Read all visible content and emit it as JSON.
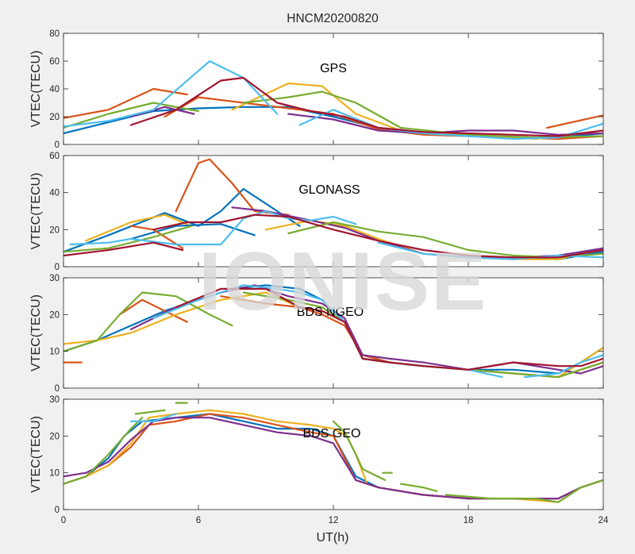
{
  "figure": {
    "title": "HNCM20200820",
    "xlabel": "UT(h)",
    "watermark": "IONISE"
  },
  "palette": [
    "#0072BD",
    "#D95319",
    "#EDB120",
    "#7E2F8E",
    "#77AC30",
    "#4DBEEE",
    "#A2142F"
  ],
  "chart_data": [
    {
      "type": "line",
      "panel_label": "GPS",
      "ylabel": "VTEC(TECU)",
      "xlim": [
        0,
        24
      ],
      "ylim": [
        0,
        80
      ],
      "yticks": [
        0,
        20,
        40,
        60,
        80
      ],
      "xticks": [
        0,
        6,
        12,
        18,
        24
      ],
      "show_xticklabels": false,
      "grid": false,
      "series": [
        {
          "color": 0,
          "x": [
            0,
            2,
            4,
            6,
            8,
            10,
            12,
            14,
            16,
            18,
            20,
            22,
            24
          ],
          "y": [
            8,
            16,
            24,
            26,
            27,
            27,
            20,
            12,
            8,
            6,
            5,
            5,
            8
          ]
        },
        {
          "color": 1,
          "x": [
            0,
            2,
            4,
            5.5
          ],
          "y": [
            19,
            25,
            40,
            36
          ]
        },
        {
          "color": 1,
          "x": [
            4.5,
            6,
            8,
            10,
            12,
            14,
            16,
            18,
            20,
            22,
            24
          ],
          "y": [
            20,
            34,
            30,
            26,
            22,
            11,
            7,
            6,
            5,
            4,
            6
          ]
        },
        {
          "color": 1,
          "x": [
            21.5,
            24
          ],
          "y": [
            12,
            21
          ]
        },
        {
          "color": 2,
          "x": [
            7.5,
            10,
            11.5,
            13,
            15,
            18,
            21,
            24
          ],
          "y": [
            25,
            44,
            42,
            22,
            10,
            7,
            4,
            10
          ]
        },
        {
          "color": 3,
          "x": [
            3,
            4.5,
            5.8
          ],
          "y": [
            20,
            27,
            22
          ]
        },
        {
          "color": 3,
          "x": [
            10,
            12,
            14,
            16,
            18,
            20,
            22,
            24
          ],
          "y": [
            22,
            18,
            10,
            8,
            10,
            10,
            7,
            8
          ]
        },
        {
          "color": 4,
          "x": [
            0,
            2,
            4,
            6
          ],
          "y": [
            12,
            22,
            30,
            24
          ]
        },
        {
          "color": 4,
          "x": [
            8,
            10,
            11.5,
            13,
            15,
            18,
            21,
            24
          ],
          "y": [
            30,
            34,
            38,
            30,
            12,
            7,
            5,
            6
          ]
        },
        {
          "color": 5,
          "x": [
            0,
            2,
            4,
            6.5,
            8,
            9.5
          ],
          "y": [
            13,
            17,
            25,
            60,
            48,
            22
          ]
        },
        {
          "color": 5,
          "x": [
            10.5,
            12,
            14,
            16,
            18,
            20,
            22,
            24
          ],
          "y": [
            14,
            25,
            12,
            8,
            6,
            4,
            5,
            15
          ]
        },
        {
          "color": 6,
          "x": [
            3,
            5,
            7,
            8,
            9.5,
            11,
            12.5,
            14,
            16,
            18,
            20,
            22,
            24
          ],
          "y": [
            14,
            25,
            46,
            48,
            30,
            24,
            20,
            12,
            9,
            8,
            7,
            6,
            10
          ]
        }
      ]
    },
    {
      "type": "line",
      "panel_label": "GLONASS",
      "ylabel": "VTEC(TECU)",
      "xlim": [
        0,
        24
      ],
      "ylim": [
        0,
        60
      ],
      "yticks": [
        0,
        20,
        40,
        60
      ],
      "xticks": [
        0,
        6,
        12,
        18,
        24
      ],
      "show_xticklabels": false,
      "grid": false,
      "series": [
        {
          "color": 0,
          "x": [
            0,
            2,
            4.5,
            6,
            7,
            8,
            9.5,
            10.5
          ],
          "y": [
            8,
            17,
            29,
            22,
            30,
            42,
            30,
            22
          ]
        },
        {
          "color": 0,
          "x": [
            3,
            5,
            7,
            8.5
          ],
          "y": [
            15,
            22,
            23,
            17
          ]
        },
        {
          "color": 0,
          "x": [
            20,
            22,
            24
          ],
          "y": [
            5,
            4,
            8
          ]
        },
        {
          "color": 1,
          "x": [
            5,
            6,
            6.5,
            7.5,
            8.5,
            10
          ],
          "y": [
            30,
            56,
            58,
            45,
            30,
            28
          ]
        },
        {
          "color": 1,
          "x": [
            3,
            4,
            5.3
          ],
          "y": [
            22,
            20,
            10
          ]
        },
        {
          "color": 2,
          "x": [
            1,
            3,
            4.5,
            5.5
          ],
          "y": [
            14,
            24,
            28,
            23
          ]
        },
        {
          "color": 2,
          "x": [
            9,
            11,
            12.5,
            14,
            16,
            18,
            20,
            22,
            24
          ],
          "y": [
            20,
            25,
            22,
            15,
            7,
            5,
            4,
            4,
            10
          ]
        },
        {
          "color": 3,
          "x": [
            7.5,
            9,
            11,
            12.5,
            14,
            16,
            18,
            20,
            22,
            24
          ],
          "y": [
            32,
            30,
            25,
            21,
            14,
            7,
            5,
            5,
            6,
            10
          ]
        },
        {
          "color": 4,
          "x": [
            0,
            2,
            4,
            5.7
          ],
          "y": [
            8,
            10,
            16,
            22
          ]
        },
        {
          "color": 4,
          "x": [
            10,
            12,
            14,
            16,
            18,
            20,
            22,
            24
          ],
          "y": [
            18,
            24,
            19,
            16,
            9,
            6,
            5,
            7
          ]
        },
        {
          "color": 5,
          "x": [
            0.3,
            2,
            3,
            5,
            7,
            8,
            9,
            10,
            11,
            12,
            13
          ],
          "y": [
            12,
            13,
            15,
            12,
            12,
            26,
            30,
            26,
            25,
            27,
            23
          ]
        },
        {
          "color": 5,
          "x": [
            14,
            16,
            18,
            20,
            22,
            24
          ],
          "y": [
            13,
            7,
            5,
            4,
            6,
            5
          ]
        },
        {
          "color": 6,
          "x": [
            0,
            2,
            4,
            5.3
          ],
          "y": [
            6,
            9,
            13,
            9
          ]
        },
        {
          "color": 6,
          "x": [
            4,
            5.5,
            7,
            8.5,
            10,
            12,
            14,
            16,
            18,
            20,
            22,
            24
          ],
          "y": [
            20,
            24,
            24,
            28,
            27,
            20,
            14,
            9,
            6,
            5,
            5,
            9
          ]
        }
      ]
    },
    {
      "type": "line",
      "panel_label": "BDS NGEO",
      "ylabel": "VTEC(TECU)",
      "xlim": [
        0,
        24
      ],
      "ylim": [
        0,
        30
      ],
      "yticks": [
        0,
        10,
        20,
        30
      ],
      "xticks": [
        0,
        6,
        12,
        18,
        24
      ],
      "show_xticklabels": false,
      "grid": false,
      "series": [
        {
          "color": 0,
          "x": [
            0,
            1.5,
            3,
            4.5,
            6,
            7.5,
            9,
            10.5,
            11.5,
            12.5,
            13.3,
            14.5,
            16,
            18,
            20,
            22,
            23,
            24
          ],
          "y": [
            10,
            13,
            17,
            21,
            24,
            27,
            28,
            27,
            24,
            18,
            9,
            7,
            6,
            5,
            5,
            4,
            7,
            11
          ]
        },
        {
          "color": 1,
          "x": [
            0,
            0.8
          ],
          "y": [
            7,
            7
          ]
        },
        {
          "color": 1,
          "x": [
            2.5,
            3.5,
            4.5,
            5.5
          ],
          "y": [
            20,
            24,
            21,
            18
          ]
        },
        {
          "color": 1,
          "x": [
            7,
            9,
            10.5,
            11.5,
            12.5,
            13.3,
            14.5,
            16,
            18,
            20,
            22,
            23,
            24
          ],
          "y": [
            25,
            23,
            22,
            20,
            17,
            9,
            7,
            6,
            5,
            4,
            3,
            5,
            7
          ]
        },
        {
          "color": 2,
          "x": [
            0,
            1.5,
            3,
            5,
            7,
            9,
            10.5,
            11.5,
            12.5,
            13.3,
            14.5,
            16,
            18,
            20,
            22,
            23,
            24
          ],
          "y": [
            12,
            13,
            15,
            20,
            24,
            26,
            22,
            21,
            18,
            8,
            7,
            6,
            5,
            4,
            3,
            7,
            11
          ]
        },
        {
          "color": 3,
          "x": [
            3,
            5,
            7,
            8.5,
            10,
            11.5,
            12.5,
            13.3,
            14.5,
            16,
            18,
            20,
            22,
            23,
            24
          ],
          "y": [
            16,
            22,
            26,
            28,
            25,
            23,
            19,
            9,
            8,
            7,
            5,
            7,
            5,
            4,
            6
          ]
        },
        {
          "color": 4,
          "x": [
            0,
            1.5,
            2.5,
            3.5,
            5,
            6.5,
            7.5
          ],
          "y": [
            10,
            13,
            20,
            26,
            25,
            20,
            17
          ]
        },
        {
          "color": 4,
          "x": [
            8,
            10,
            11.5,
            12.5,
            13.3,
            14.5,
            16,
            18,
            20,
            22,
            23,
            24
          ],
          "y": [
            26,
            24,
            22,
            18,
            8,
            7,
            6,
            5,
            4,
            3,
            5,
            7
          ]
        },
        {
          "color": 5,
          "x": [
            4,
            6,
            8,
            9.5,
            10.5,
            11.5,
            12.5,
            13.3,
            14.5,
            16,
            18,
            19.5
          ],
          "y": [
            19,
            24,
            28,
            27,
            26,
            24,
            18,
            8,
            7,
            6,
            5,
            3
          ]
        },
        {
          "color": 5,
          "x": [
            20.5,
            22,
            23,
            24
          ],
          "y": [
            3,
            4,
            7,
            9
          ]
        },
        {
          "color": 6,
          "x": [
            5,
            7,
            9,
            10.5,
            11.5,
            12.5,
            13.3,
            14.5,
            16,
            18,
            20,
            22,
            23,
            24
          ],
          "y": [
            22,
            27,
            27,
            22,
            21,
            18,
            8,
            7,
            6,
            5,
            7,
            6,
            6,
            8
          ]
        }
      ]
    },
    {
      "type": "line",
      "panel_label": "BDS GEO",
      "ylabel": "VTEC(TECU)",
      "xlim": [
        0,
        24
      ],
      "ylim": [
        0,
        30
      ],
      "yticks": [
        0,
        10,
        20,
        30
      ],
      "xticks": [
        0,
        6,
        12,
        18,
        24
      ],
      "xticklabels": [
        "0",
        "6",
        "12",
        "18",
        "24"
      ],
      "show_xticklabels": true,
      "grid": false,
      "series": [
        {
          "color": 0,
          "x": [
            0,
            1,
            2,
            2.7,
            3.5,
            5,
            6.5,
            8,
            9.5,
            11,
            12,
            13,
            14,
            16,
            18,
            20,
            22,
            23,
            24
          ],
          "y": [
            7,
            9,
            14,
            20,
            24,
            25,
            26,
            24,
            22,
            22,
            20,
            9,
            6,
            4,
            3,
            3,
            3,
            6,
            8
          ]
        },
        {
          "color": 1,
          "x": [
            0,
            1,
            2,
            3,
            3.8,
            5,
            6.5,
            8,
            9.5,
            11,
            12,
            13,
            14,
            16,
            18,
            20,
            22,
            23,
            24
          ],
          "y": [
            7,
            9,
            12,
            17,
            23,
            24,
            26,
            25,
            23,
            21,
            20,
            8,
            6,
            4,
            3,
            3,
            3,
            6,
            8
          ]
        },
        {
          "color": 2,
          "x": [
            0,
            1,
            2,
            3,
            3.8,
            5,
            6.5,
            8,
            9.5,
            11,
            12,
            12.6,
            13,
            13.5,
            14,
            16,
            18,
            20,
            22,
            23,
            24
          ],
          "y": [
            7,
            9,
            12,
            18,
            25,
            26,
            27,
            26,
            24,
            23,
            22,
            20,
            15,
            7,
            6,
            4,
            3,
            3,
            2,
            6,
            8
          ]
        },
        {
          "color": 3,
          "x": [
            0,
            1,
            2,
            3,
            4,
            5,
            6.5,
            8,
            9.5,
            11,
            12,
            13,
            14,
            16,
            18,
            20,
            22,
            23,
            24
          ],
          "y": [
            9,
            10,
            13,
            19,
            24,
            25,
            25,
            23,
            21,
            20,
            18,
            8,
            6,
            4,
            3,
            3,
            3,
            6,
            8
          ]
        },
        {
          "color": 4,
          "x": [
            0,
            1,
            2,
            3,
            3.5
          ],
          "y": [
            7,
            9,
            15,
            22,
            25
          ]
        },
        {
          "color": 4,
          "x": [
            3.2,
            4.5
          ],
          "y": [
            26,
            27
          ]
        },
        {
          "color": 4,
          "x": [
            5,
            5.5
          ],
          "y": [
            29,
            29
          ]
        },
        {
          "color": 4,
          "x": [
            12,
            12.5,
            13,
            13.3,
            14.3
          ],
          "y": [
            24,
            21,
            15,
            11,
            8
          ]
        },
        {
          "color": 4,
          "x": [
            14.2,
            14.6
          ],
          "y": [
            10,
            10
          ]
        },
        {
          "color": 4,
          "x": [
            15,
            16,
            16.6
          ],
          "y": [
            7,
            6,
            5
          ]
        },
        {
          "color": 4,
          "x": [
            17,
            19,
            21,
            22,
            23,
            24
          ],
          "y": [
            4,
            3,
            3,
            2,
            6,
            8
          ]
        },
        {
          "color": 5,
          "x": [
            3,
            4,
            5
          ],
          "y": [
            24,
            24,
            26
          ]
        }
      ]
    }
  ]
}
